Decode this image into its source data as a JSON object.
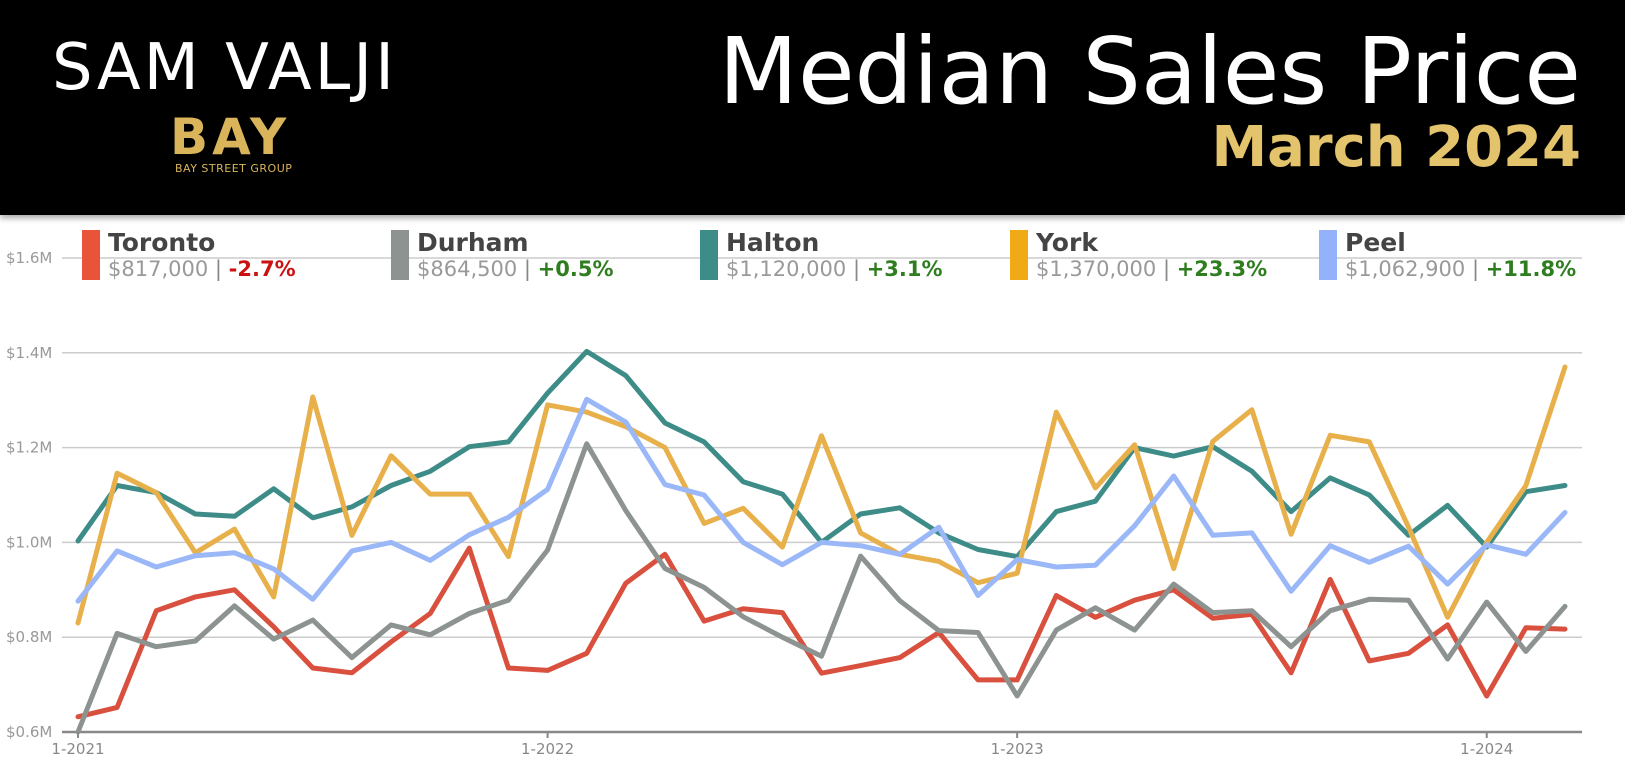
{
  "brand": {
    "name": "SAM VALJI",
    "logo": "BAY",
    "group": "BAY STREET GROUP"
  },
  "title": "Median Sales Price",
  "subtitle": "March 2024",
  "legend": [
    {
      "name": "Toronto",
      "value": "$817,000",
      "sep": "|",
      "change": "-2.7%",
      "color": "#e8533a",
      "change_color": "#cc1111"
    },
    {
      "name": "Durham",
      "value": "$864,500",
      "sep": "|",
      "change": "+0.5%",
      "color": "#8c9391",
      "change_color": "#2e7d1e"
    },
    {
      "name": "Halton",
      "value": "$1,120,000",
      "sep": "|",
      "change": "+3.1%",
      "color": "#3d8c88",
      "change_color": "#2e7d1e"
    },
    {
      "name": "York",
      "value": "$1,370,000",
      "sep": "|",
      "change": "+23.3%",
      "color": "#f0aa16",
      "change_color": "#2e7d1e"
    },
    {
      "name": "Peel",
      "value": "$1,062,900",
      "sep": "|",
      "change": "+11.8%",
      "color": "#93b2fb",
      "change_color": "#2e7d1e"
    }
  ],
  "chart_data": {
    "type": "line",
    "x": [
      "1-2021",
      "2-2021",
      "3-2021",
      "4-2021",
      "5-2021",
      "6-2021",
      "7-2021",
      "8-2021",
      "9-2021",
      "10-2021",
      "11-2021",
      "12-2021",
      "1-2022",
      "2-2022",
      "3-2022",
      "4-2022",
      "5-2022",
      "6-2022",
      "7-2022",
      "8-2022",
      "9-2022",
      "10-2022",
      "11-2022",
      "12-2022",
      "1-2023",
      "2-2023",
      "3-2023",
      "4-2023",
      "5-2023",
      "6-2023",
      "7-2023",
      "8-2023",
      "9-2023",
      "10-2023",
      "11-2023",
      "12-2023",
      "1-2024",
      "2-2024",
      "3-2024"
    ],
    "x_tick_labels": [
      "1-2021",
      "1-2022",
      "1-2023",
      "1-2024"
    ],
    "y_tick_labels": [
      "$0.6M",
      "$0.8M",
      "$1.0M",
      "$1.2M",
      "$1.4M",
      "$1.6M"
    ],
    "ylim": [
      0.6,
      1.6
    ],
    "y_ticks": [
      0.6,
      0.8,
      1.0,
      1.2,
      1.4,
      1.6
    ],
    "grid": true,
    "legend_position": "top",
    "series": [
      {
        "name": "Toronto",
        "color": "#d9503e",
        "values": [
          0.632,
          0.652,
          0.856,
          0.885,
          0.9,
          0.822,
          0.735,
          0.725,
          0.79,
          0.85,
          0.988,
          0.735,
          0.73,
          0.766,
          0.914,
          0.975,
          0.834,
          0.86,
          0.852,
          0.724,
          0.74,
          0.757,
          0.81,
          0.71,
          0.71,
          0.888,
          0.842,
          0.878,
          0.9,
          0.84,
          0.848,
          0.725,
          0.922,
          0.75,
          0.766,
          0.826,
          0.676,
          0.82,
          0.817
        ]
      },
      {
        "name": "Durham",
        "color": "#8c9391",
        "values": [
          0.6,
          0.808,
          0.78,
          0.792,
          0.866,
          0.796,
          0.836,
          0.757,
          0.826,
          0.805,
          0.85,
          0.878,
          0.984,
          1.208,
          1.067,
          0.945,
          0.905,
          0.843,
          0.8,
          0.76,
          0.971,
          0.877,
          0.814,
          0.81,
          0.676,
          0.815,
          0.862,
          0.815,
          0.912,
          0.852,
          0.856,
          0.78,
          0.856,
          0.88,
          0.878,
          0.754,
          0.874,
          0.77,
          0.865
        ]
      },
      {
        "name": "Halton",
        "color": "#3d8c88",
        "values": [
          1.003,
          1.12,
          1.105,
          1.06,
          1.055,
          1.113,
          1.052,
          1.075,
          1.12,
          1.15,
          1.202,
          1.212,
          1.315,
          1.403,
          1.352,
          1.252,
          1.212,
          1.128,
          1.102,
          1.0,
          1.06,
          1.073,
          1.02,
          0.985,
          0.97,
          1.065,
          1.087,
          1.2,
          1.182,
          1.202,
          1.15,
          1.065,
          1.136,
          1.1,
          1.015,
          1.078,
          0.99,
          1.107,
          1.12
        ]
      },
      {
        "name": "York",
        "color": "#e8b04a",
        "values": [
          0.83,
          1.146,
          1.105,
          0.978,
          1.028,
          0.885,
          1.307,
          1.015,
          1.183,
          1.102,
          1.102,
          0.97,
          1.29,
          1.275,
          1.244,
          1.2,
          1.04,
          1.072,
          0.99,
          1.225,
          1.02,
          0.975,
          0.96,
          0.915,
          0.935,
          1.275,
          1.115,
          1.206,
          0.945,
          1.213,
          1.28,
          1.017,
          1.226,
          1.212,
          1.032,
          0.842,
          1.0,
          1.12,
          1.37
        ]
      },
      {
        "name": "Peel",
        "color": "#9ab7f8",
        "values": [
          0.876,
          0.982,
          0.948,
          0.972,
          0.978,
          0.944,
          0.88,
          0.982,
          1.0,
          0.962,
          1.016,
          1.053,
          1.112,
          1.302,
          1.254,
          1.122,
          1.1,
          1.0,
          0.953,
          1.0,
          0.993,
          0.975,
          1.032,
          0.888,
          0.964,
          0.948,
          0.952,
          1.035,
          1.14,
          1.015,
          1.02,
          0.897,
          0.993,
          0.958,
          0.992,
          0.912,
          0.995,
          0.975,
          1.063
        ]
      }
    ]
  }
}
